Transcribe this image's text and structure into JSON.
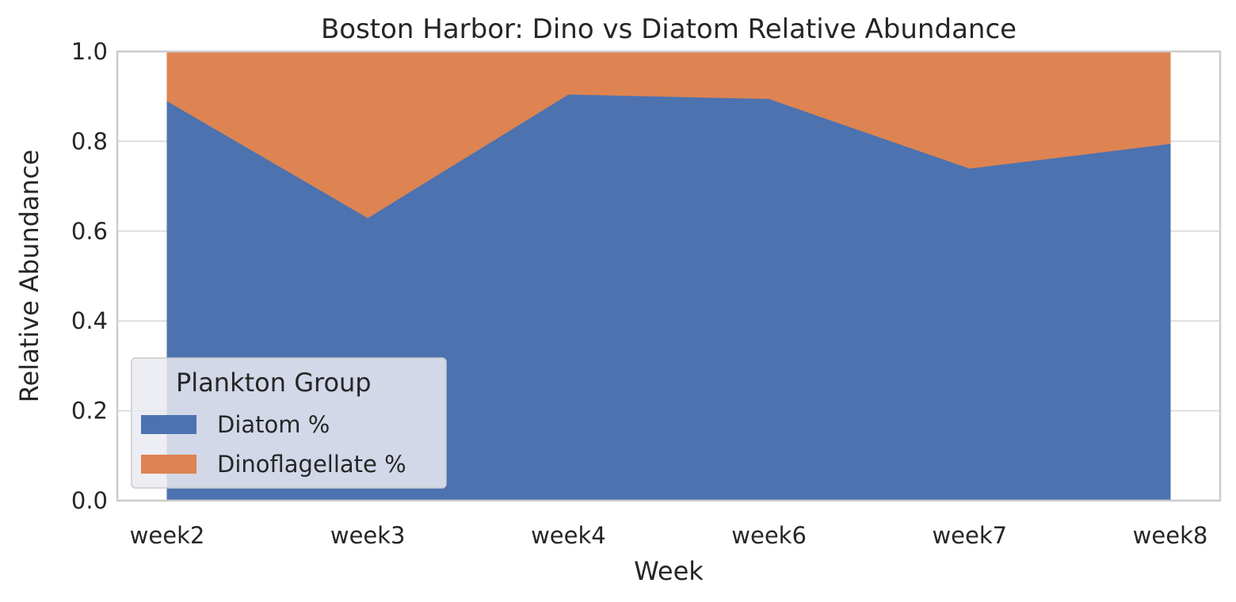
{
  "chart_data": {
    "type": "area",
    "stacked": true,
    "title": "Boston Harbor: Dino vs Diatom Relative Abundance",
    "xlabel": "Week",
    "ylabel": "Relative Abundance",
    "categories": [
      "week2",
      "week3",
      "week4",
      "week6",
      "week7",
      "week8"
    ],
    "ylim": [
      0,
      1.0
    ],
    "yticks": [
      0.0,
      0.2,
      0.4,
      0.6,
      0.8,
      1.0
    ],
    "ytick_labels": [
      "0.0",
      "0.2",
      "0.4",
      "0.6",
      "0.8",
      "1.0"
    ],
    "grid": true,
    "series": [
      {
        "name": "Diatom %",
        "color": "#4c72b0",
        "values": [
          0.89,
          0.63,
          0.905,
          0.895,
          0.74,
          0.795
        ]
      },
      {
        "name": "Dinoflagellate %",
        "color": "#dd8452",
        "values": [
          0.11,
          0.37,
          0.095,
          0.105,
          0.26,
          0.205
        ]
      }
    ],
    "legend": {
      "title": "Plankton Group",
      "placement": "lower-left"
    }
  }
}
